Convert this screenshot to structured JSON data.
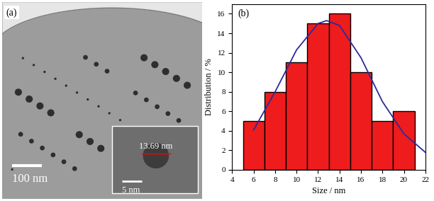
{
  "image": {
    "label": "(a)",
    "scale_bar": "100 nm",
    "inset": {
      "measurement": "13.69 nm",
      "scale_bar": "5 nm"
    }
  },
  "chart_data": {
    "type": "histogram",
    "label": "(b)",
    "bins": [
      5,
      7,
      9,
      11,
      13,
      15,
      17,
      19,
      21
    ],
    "values": [
      5,
      8,
      11,
      15,
      16,
      10,
      5,
      6
    ],
    "color": "#ee1c1c",
    "fit": {
      "type": "line",
      "color": "#2b2b9a",
      "x": [
        6,
        8,
        10,
        12,
        12.8,
        14,
        16,
        18,
        20,
        22
      ],
      "values": [
        4.1,
        8.0,
        12.3,
        15.0,
        15.3,
        14.8,
        11.5,
        7.0,
        3.7,
        1.8
      ]
    },
    "x_label": "Size / nm",
    "y_label": "Distribution / %",
    "xlim": [
      4,
      22
    ],
    "xticks": [
      4,
      6,
      8,
      10,
      12,
      14,
      16,
      18,
      20,
      22
    ],
    "ylim": [
      0,
      17
    ],
    "yticks": [
      0,
      2,
      4,
      6,
      8,
      10,
      12,
      14,
      16
    ],
    "grid": false
  }
}
